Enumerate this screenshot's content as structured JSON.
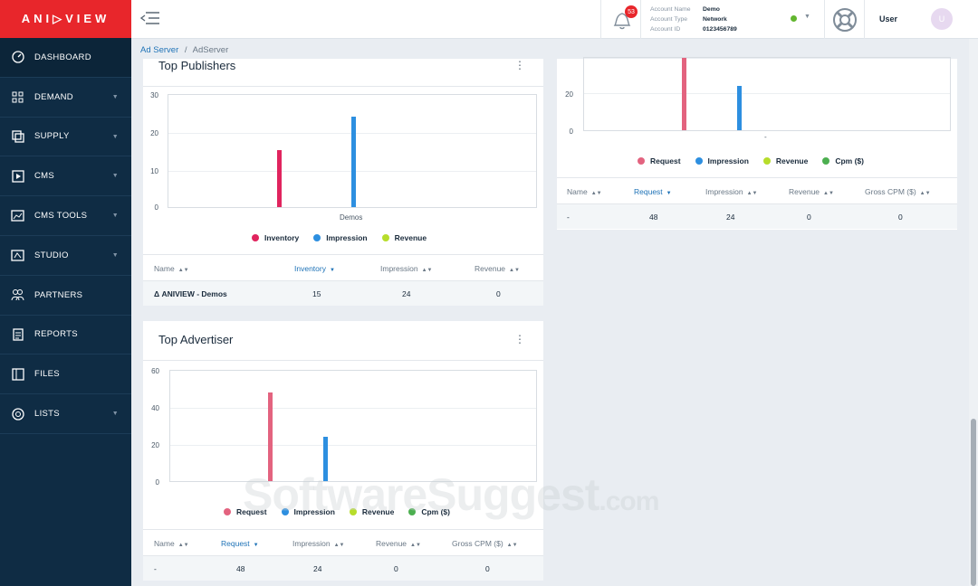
{
  "brand": {
    "logo_text": "ANI▷VIEW"
  },
  "sidebar": {
    "items": [
      {
        "label": "DASHBOARD",
        "icon": "dashboard-gauge-icon",
        "caret": false
      },
      {
        "label": "DEMAND",
        "icon": "grid-icon",
        "caret": true
      },
      {
        "label": "SUPPLY",
        "icon": "supply-icon",
        "caret": true
      },
      {
        "label": "CMS",
        "icon": "play-icon",
        "caret": true
      },
      {
        "label": "CMS TOOLS",
        "icon": "chart-icon",
        "caret": true
      },
      {
        "label": "STUDIO",
        "icon": "studio-icon",
        "caret": true
      },
      {
        "label": "PARTNERS",
        "icon": "partners-icon",
        "caret": false
      },
      {
        "label": "REPORTS",
        "icon": "report-icon",
        "caret": false
      },
      {
        "label": "FILES",
        "icon": "files-icon",
        "caret": false
      },
      {
        "label": "LISTS",
        "icon": "lists-icon",
        "caret": true
      }
    ]
  },
  "topbar": {
    "notifications_count": "53",
    "account": {
      "name_key": "Account Name",
      "name_val": "Demo",
      "type_key": "Account Type",
      "type_val": "Network",
      "id_key": "Account ID",
      "id_val": "0123456789"
    },
    "user_label": "User",
    "avatar_initial": "U"
  },
  "breadcrumb": {
    "root": "Ad Server",
    "sep": "/",
    "current": "AdServer"
  },
  "top_publishers": {
    "title": "Top Publishers",
    "legend": [
      "Inventory",
      "Impression",
      "Revenue"
    ],
    "columns": [
      "Name",
      "Inventory",
      "Impression",
      "Revenue"
    ],
    "row": {
      "name": "ANIVIEW - Demos",
      "inventory": "15",
      "impression": "24",
      "revenue": "0"
    }
  },
  "top_advertiser": {
    "title": "Top Advertiser",
    "legend": [
      "Request",
      "Impression",
      "Revenue",
      "Cpm ($)"
    ],
    "columns": [
      "Name",
      "Request",
      "Impression",
      "Revenue",
      "Gross CPM ($)"
    ],
    "row": {
      "name": "-",
      "request": "48",
      "impression": "24",
      "revenue": "0",
      "gross_cpm": "0"
    }
  },
  "right_card": {
    "legend": [
      "Request",
      "Impression",
      "Revenue",
      "Cpm ($)"
    ],
    "columns": [
      "Name",
      "Request",
      "Impression",
      "Revenue",
      "Gross CPM ($)"
    ],
    "row": {
      "name": "-",
      "request": "48",
      "impression": "24",
      "revenue": "0",
      "gross_cpm": "0"
    }
  },
  "colors": {
    "brand_red": "#e8262b",
    "sidebar_bg": "#0f2c44",
    "request_pink": "#e3637f",
    "inventory_red": "#e0245e",
    "impression_blue": "#2d8fe0",
    "revenue_green": "#b7dd2b",
    "cpm_green": "#4caf50",
    "link_blue": "#1f73b7"
  },
  "watermark": {
    "text": "SoftwareSuggest",
    "suffix": ".com"
  },
  "chart_data": [
    {
      "type": "bar",
      "title": "Top Publishers",
      "categories": [
        "Demos"
      ],
      "series": [
        {
          "name": "Inventory",
          "values": [
            15
          ]
        },
        {
          "name": "Impression",
          "values": [
            24
          ]
        },
        {
          "name": "Revenue",
          "values": [
            0
          ]
        }
      ],
      "ylim": [
        0,
        30
      ],
      "yticks": [
        0,
        10,
        20,
        30
      ],
      "grid": true,
      "legend": "bottom"
    },
    {
      "type": "bar",
      "title": "Top Advertiser",
      "categories": [
        ""
      ],
      "series": [
        {
          "name": "Request",
          "values": [
            48
          ]
        },
        {
          "name": "Impression",
          "values": [
            24
          ]
        },
        {
          "name": "Revenue",
          "values": [
            0
          ]
        },
        {
          "name": "Cpm ($)",
          "values": [
            0
          ]
        }
      ],
      "ylim": [
        0,
        60
      ],
      "yticks": [
        0,
        20,
        40,
        60
      ],
      "grid": true,
      "legend": "bottom"
    },
    {
      "type": "bar",
      "categories": [
        "-"
      ],
      "series": [
        {
          "name": "Request",
          "values": [
            48
          ]
        },
        {
          "name": "Impression",
          "values": [
            24
          ]
        },
        {
          "name": "Revenue",
          "values": [
            0
          ]
        },
        {
          "name": "Cpm ($)",
          "values": [
            0
          ]
        }
      ],
      "yticks": [
        0,
        20
      ],
      "grid": true,
      "legend": "bottom"
    }
  ]
}
